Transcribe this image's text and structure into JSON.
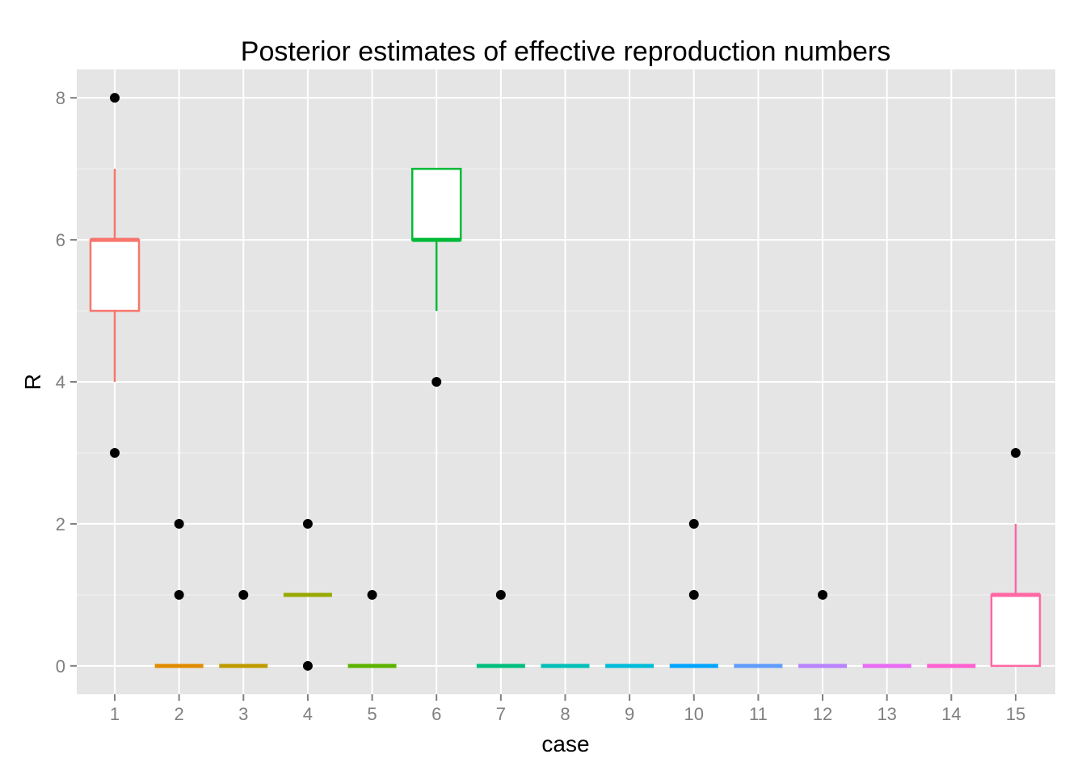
{
  "chart_data": {
    "type": "boxplot",
    "title": "Posterior estimates of effective reproduction numbers",
    "xlabel": "case",
    "ylabel": "R",
    "categories": [
      "1",
      "2",
      "3",
      "4",
      "5",
      "6",
      "7",
      "8",
      "9",
      "10",
      "11",
      "12",
      "13",
      "14",
      "15"
    ],
    "yticks": [
      0,
      2,
      4,
      6,
      8
    ],
    "ylim": [
      -0.4,
      8.4
    ],
    "grid": true,
    "legend": "none",
    "colors": {
      "panel_background": "#e5e5e5",
      "grid_major": "#ffffff",
      "grid_minor": "#f2f2f2",
      "box_fill": "#ffffff",
      "outlier": "#000000"
    },
    "boxes": [
      {
        "case": "1",
        "lower_whisker": 4,
        "q1": 5,
        "median": 6,
        "q3": 6,
        "upper_whisker": 7,
        "outliers": [
          3,
          8
        ],
        "color": "#F8766D"
      },
      {
        "case": "2",
        "lower_whisker": 0,
        "q1": 0,
        "median": 0,
        "q3": 0,
        "upper_whisker": 0,
        "outliers": [
          1,
          2
        ],
        "color": "#E08B00"
      },
      {
        "case": "3",
        "lower_whisker": 0,
        "q1": 0,
        "median": 0,
        "q3": 0,
        "upper_whisker": 0,
        "outliers": [
          1
        ],
        "color": "#C09B00"
      },
      {
        "case": "4",
        "lower_whisker": 1,
        "q1": 1,
        "median": 1,
        "q3": 1,
        "upper_whisker": 1,
        "outliers": [
          0,
          2
        ],
        "color": "#99A800"
      },
      {
        "case": "5",
        "lower_whisker": 0,
        "q1": 0,
        "median": 0,
        "q3": 0,
        "upper_whisker": 0,
        "outliers": [
          1
        ],
        "color": "#5BB300"
      },
      {
        "case": "6",
        "lower_whisker": 5,
        "q1": 6,
        "median": 6,
        "q3": 7,
        "upper_whisker": 7,
        "outliers": [
          4
        ],
        "color": "#00BA38"
      },
      {
        "case": "7",
        "lower_whisker": 0,
        "q1": 0,
        "median": 0,
        "q3": 0,
        "upper_whisker": 0,
        "outliers": [
          1
        ],
        "color": "#00BF7D"
      },
      {
        "case": "8",
        "lower_whisker": 0,
        "q1": 0,
        "median": 0,
        "q3": 0,
        "upper_whisker": 0,
        "outliers": [],
        "color": "#00C0B8"
      },
      {
        "case": "9",
        "lower_whisker": 0,
        "q1": 0,
        "median": 0,
        "q3": 0,
        "upper_whisker": 0,
        "outliers": [],
        "color": "#00BCD8"
      },
      {
        "case": "10",
        "lower_whisker": 0,
        "q1": 0,
        "median": 0,
        "q3": 0,
        "upper_whisker": 0,
        "outliers": [
          1,
          2
        ],
        "color": "#00A5FF"
      },
      {
        "case": "11",
        "lower_whisker": 0,
        "q1": 0,
        "median": 0,
        "q3": 0,
        "upper_whisker": 0,
        "outliers": [],
        "color": "#619CFF"
      },
      {
        "case": "12",
        "lower_whisker": 0,
        "q1": 0,
        "median": 0,
        "q3": 0,
        "upper_whisker": 0,
        "outliers": [
          1
        ],
        "color": "#B983FF"
      },
      {
        "case": "13",
        "lower_whisker": 0,
        "q1": 0,
        "median": 0,
        "q3": 0,
        "upper_whisker": 0,
        "outliers": [],
        "color": "#E76BF3"
      },
      {
        "case": "14",
        "lower_whisker": 0,
        "q1": 0,
        "median": 0,
        "q3": 0,
        "upper_whisker": 0,
        "outliers": [],
        "color": "#FD61D1"
      },
      {
        "case": "15",
        "lower_whisker": 0,
        "q1": 0,
        "median": 1,
        "q3": 1,
        "upper_whisker": 2,
        "outliers": [
          3
        ],
        "color": "#FF67A4"
      }
    ]
  }
}
